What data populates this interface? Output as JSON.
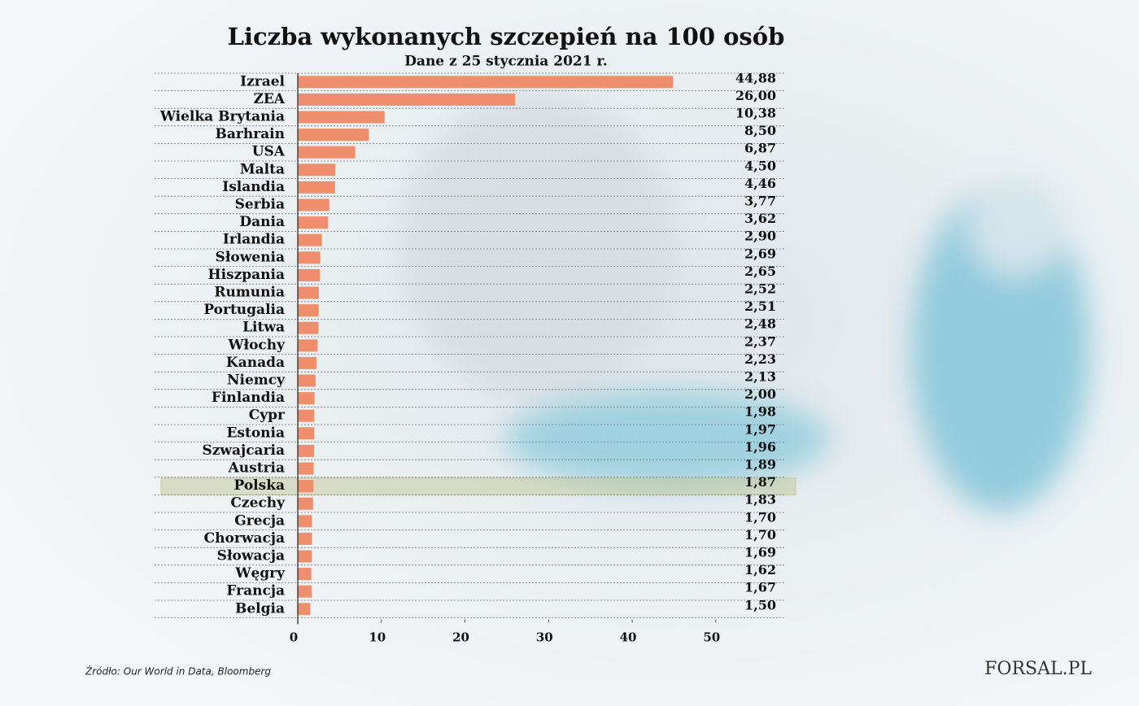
{
  "chart_data": {
    "type": "hbar",
    "title": "Liczba wykonanych szczepień na 100 osób",
    "subtitle": "Dane z 25 stycznia 2021 r.",
    "categories": [
      "Izrael",
      "ZEA",
      "Wielka Brytania",
      "Barhrain",
      "USA",
      "Malta",
      "Islandia",
      "Serbia",
      "Dania",
      "Irlandia",
      "Słowenia",
      "Hiszpania",
      "Rumunia",
      "Portugalia",
      "Litwa",
      "Włochy",
      "Kanada",
      "Niemcy",
      "Finlandia",
      "Cypr",
      "Estonia",
      "Szwajcaria",
      "Austria",
      "Polska",
      "Czechy",
      "Grecja",
      "Chorwacja",
      "Słowacja",
      "Węgry",
      "Francja",
      "Belgia"
    ],
    "values": [
      44.88,
      26.0,
      10.38,
      8.5,
      6.87,
      4.5,
      4.46,
      3.77,
      3.62,
      2.9,
      2.69,
      2.65,
      2.52,
      2.51,
      2.48,
      2.37,
      2.23,
      2.13,
      2.0,
      1.98,
      1.97,
      1.96,
      1.89,
      1.87,
      1.83,
      1.7,
      1.7,
      1.69,
      1.62,
      1.67,
      1.5
    ],
    "value_labels": [
      "44,88",
      "26,00",
      "10,38",
      "8,50",
      "6,87",
      "4,50",
      "4,46",
      "3,77",
      "3,62",
      "2,90",
      "2,69",
      "2,65",
      "2,52",
      "2,51",
      "2,48",
      "2,37",
      "2,23",
      "2,13",
      "2,00",
      "1,98",
      "1,97",
      "1,96",
      "1,89",
      "1,87",
      "1,83",
      "1,70",
      "1,70",
      "1,69",
      "1,62",
      "1,67",
      "1,50"
    ],
    "color": "#ef8e6c",
    "highlight": "Polska",
    "xlim": [
      0,
      58
    ],
    "xticks": [
      0,
      10,
      20,
      30,
      40,
      50
    ],
    "grid": true,
    "source": "Źródło:  Our World in Data, Bloomberg",
    "logo": "FORSAL.PL"
  }
}
